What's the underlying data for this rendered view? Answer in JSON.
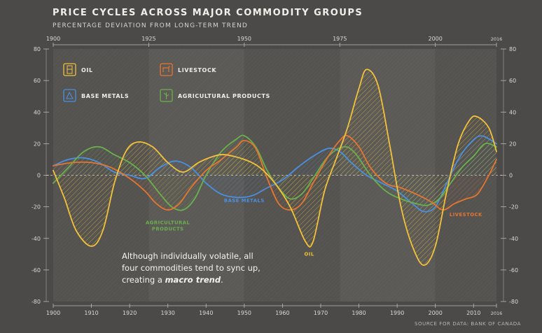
{
  "title": "PRICE CYCLES ACROSS MAJOR COMMODITY GROUPS",
  "subtitle": "PERCENTAGE DEVIATION FROM LONG-TERM TREND",
  "source": "SOURCE FOR DATA: BANK OF CANADA",
  "annotation": {
    "line1": "Although individually volatile, all",
    "line2": "four commodities tend to sync up,",
    "line3_prefix": "creating a ",
    "line3_emphasis": "macro trend",
    "line3_suffix": "."
  },
  "colors": {
    "background": "#4b4a48",
    "oil": "#f2c23a",
    "base_metals": "#4a8fe0",
    "livestock": "#e67530",
    "agricultural_products": "#6ab04c"
  },
  "chart_data": {
    "type": "line",
    "title": "PRICE CYCLES ACROSS MAJOR COMMODITY GROUPS",
    "subtitle": "PERCENTAGE DEVIATION FROM LONG-TERM TREND",
    "xlabel": "",
    "ylabel": "",
    "xlim": [
      1900,
      2016
    ],
    "ylim": [
      -80,
      80
    ],
    "x_ticks_bottom": [
      "1900",
      "1910",
      "1920",
      "1930",
      "1940",
      "1950",
      "1960",
      "1970",
      "1980",
      "1990",
      "2000",
      "2010",
      "2016"
    ],
    "x_ticks_top": [
      "1900",
      "1925",
      "1950",
      "1975",
      "2000",
      "2016"
    ],
    "y_ticks": [
      "80",
      "60",
      "40",
      "20",
      "0",
      "-20",
      "-40",
      "-60",
      "-80"
    ],
    "grid": false,
    "legend_position": "top-left",
    "legend": [
      {
        "label": "OIL",
        "icon": "oil-barrel-icon",
        "color": "#f2c23a"
      },
      {
        "label": "LIVESTOCK",
        "icon": "livestock-icon",
        "color": "#e67530"
      },
      {
        "label": "BASE METALS",
        "icon": "base-metals-icon",
        "color": "#4a8fe0"
      },
      {
        "label": "AGRICULTURAL PRODUCTS",
        "icon": "agriculture-icon",
        "color": "#6ab04c"
      }
    ],
    "series": [
      {
        "name": "OIL",
        "color": "#f2c23a",
        "points": [
          [
            1900,
            3
          ],
          [
            1903,
            -15
          ],
          [
            1906,
            -35
          ],
          [
            1910,
            -45
          ],
          [
            1913,
            -35
          ],
          [
            1916,
            -5
          ],
          [
            1919,
            15
          ],
          [
            1922,
            21
          ],
          [
            1926,
            18
          ],
          [
            1930,
            8
          ],
          [
            1934,
            2
          ],
          [
            1938,
            8
          ],
          [
            1942,
            12
          ],
          [
            1945,
            13
          ],
          [
            1950,
            10
          ],
          [
            1954,
            5
          ],
          [
            1958,
            -5
          ],
          [
            1962,
            -20
          ],
          [
            1966,
            -42
          ],
          [
            1968,
            -42
          ],
          [
            1971,
            -10
          ],
          [
            1974,
            10
          ],
          [
            1977,
            30
          ],
          [
            1980,
            55
          ],
          [
            1982,
            67
          ],
          [
            1985,
            57
          ],
          [
            1988,
            20
          ],
          [
            1991,
            -20
          ],
          [
            1994,
            -45
          ],
          [
            1997,
            -57
          ],
          [
            2000,
            -45
          ],
          [
            2003,
            -10
          ],
          [
            2006,
            20
          ],
          [
            2009,
            35
          ],
          [
            2011,
            37
          ],
          [
            2014,
            30
          ],
          [
            2016,
            15
          ]
        ]
      },
      {
        "name": "BASE METALS",
        "color": "#4a8fe0",
        "points": [
          [
            1900,
            6
          ],
          [
            1904,
            10
          ],
          [
            1908,
            11
          ],
          [
            1912,
            8
          ],
          [
            1916,
            2
          ],
          [
            1920,
            0
          ],
          [
            1924,
            -2
          ],
          [
            1928,
            5
          ],
          [
            1932,
            9
          ],
          [
            1936,
            5
          ],
          [
            1940,
            -5
          ],
          [
            1944,
            -12
          ],
          [
            1948,
            -14
          ],
          [
            1952,
            -13
          ],
          [
            1956,
            -8
          ],
          [
            1960,
            -3
          ],
          [
            1964,
            5
          ],
          [
            1968,
            12
          ],
          [
            1972,
            17
          ],
          [
            1975,
            15
          ],
          [
            1978,
            8
          ],
          [
            1982,
            0
          ],
          [
            1986,
            -5
          ],
          [
            1990,
            -10
          ],
          [
            1994,
            -18
          ],
          [
            1997,
            -23
          ],
          [
            2000,
            -20
          ],
          [
            2003,
            -5
          ],
          [
            2006,
            10
          ],
          [
            2009,
            20
          ],
          [
            2012,
            25
          ],
          [
            2016,
            20
          ]
        ]
      },
      {
        "name": "LIVESTOCK",
        "color": "#e67530",
        "points": [
          [
            1900,
            6
          ],
          [
            1905,
            8
          ],
          [
            1910,
            8
          ],
          [
            1915,
            5
          ],
          [
            1920,
            -2
          ],
          [
            1924,
            -10
          ],
          [
            1927,
            -18
          ],
          [
            1930,
            -22
          ],
          [
            1933,
            -18
          ],
          [
            1936,
            -8
          ],
          [
            1940,
            3
          ],
          [
            1944,
            10
          ],
          [
            1948,
            18
          ],
          [
            1950,
            22
          ],
          [
            1953,
            17
          ],
          [
            1956,
            -2
          ],
          [
            1959,
            -18
          ],
          [
            1962,
            -22
          ],
          [
            1965,
            -18
          ],
          [
            1968,
            -5
          ],
          [
            1972,
            12
          ],
          [
            1975,
            22
          ],
          [
            1977,
            25
          ],
          [
            1980,
            18
          ],
          [
            1983,
            5
          ],
          [
            1987,
            -5
          ],
          [
            1991,
            -8
          ],
          [
            1995,
            -12
          ],
          [
            1999,
            -17
          ],
          [
            2002,
            -22
          ],
          [
            2005,
            -18
          ],
          [
            2008,
            -15
          ],
          [
            2011,
            -12
          ],
          [
            2014,
            0
          ],
          [
            2016,
            10
          ]
        ]
      },
      {
        "name": "AGRICULTURAL PRODUCTS",
        "color": "#6ab04c",
        "points": [
          [
            1900,
            -5
          ],
          [
            1904,
            5
          ],
          [
            1908,
            15
          ],
          [
            1912,
            18
          ],
          [
            1916,
            13
          ],
          [
            1920,
            8
          ],
          [
            1924,
            0
          ],
          [
            1928,
            -12
          ],
          [
            1931,
            -20
          ],
          [
            1934,
            -22
          ],
          [
            1937,
            -15
          ],
          [
            1940,
            0
          ],
          [
            1944,
            15
          ],
          [
            1948,
            23
          ],
          [
            1950,
            25
          ],
          [
            1953,
            18
          ],
          [
            1956,
            3
          ],
          [
            1959,
            -8
          ],
          [
            1962,
            -15
          ],
          [
            1965,
            -12
          ],
          [
            1968,
            -2
          ],
          [
            1972,
            12
          ],
          [
            1976,
            18
          ],
          [
            1979,
            14
          ],
          [
            1983,
            0
          ],
          [
            1987,
            -10
          ],
          [
            1991,
            -15
          ],
          [
            1995,
            -18
          ],
          [
            1998,
            -19
          ],
          [
            2001,
            -15
          ],
          [
            2004,
            -5
          ],
          [
            2007,
            5
          ],
          [
            2010,
            12
          ],
          [
            2013,
            20
          ],
          [
            2016,
            18
          ]
        ]
      }
    ],
    "series_labels": [
      {
        "text": "BASE METALS",
        "x": 1950,
        "y": -17,
        "color": "#4a8fe0"
      },
      {
        "text": "AGRICULTURAL",
        "x": 1930,
        "y": -31,
        "color": "#6ab04c"
      },
      {
        "text": "PRODUCTS",
        "x": 1930,
        "y": -35,
        "color": "#6ab04c"
      },
      {
        "text": "OIL",
        "x": 1967,
        "y": -51,
        "color": "#f2c23a"
      },
      {
        "text": "LIVESTOCK",
        "x": 2008,
        "y": -26,
        "color": "#e67530"
      }
    ]
  }
}
